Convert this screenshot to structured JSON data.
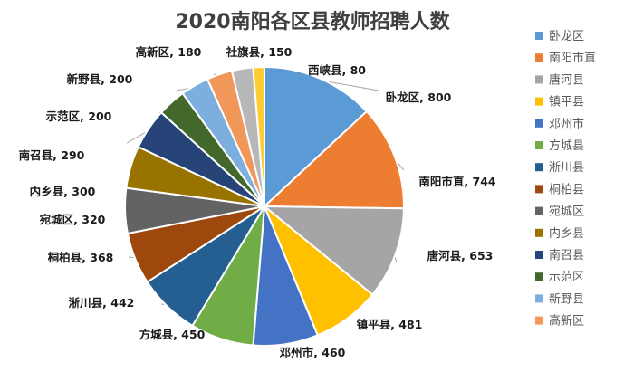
{
  "chart_data": {
    "type": "pie",
    "title": "2020南阳各区县教师招聘人数",
    "categories": [
      "卧龙区",
      "南阳市直",
      "唐河县",
      "镇平县",
      "邓州市",
      "方城县",
      "淅川县",
      "桐柏县",
      "宛城区",
      "内乡县",
      "南召县",
      "示范区",
      "新野县",
      "高新区",
      "社旗县",
      "西峡县"
    ],
    "values": [
      800,
      744,
      653,
      481,
      460,
      450,
      442,
      368,
      320,
      300,
      290,
      200,
      200,
      180,
      150,
      80
    ],
    "colors": [
      "#5B9BD5",
      "#ED7D31",
      "#A5A5A5",
      "#FFC000",
      "#4472C4",
      "#70AD47",
      "#255E91",
      "#9E480E",
      "#636363",
      "#997300",
      "#264478",
      "#43682B",
      "#7CAFDD",
      "#F1975A",
      "#B7B7B7",
      "#FFCD33"
    ],
    "legend": {
      "position": "right",
      "entries": [
        "卧龙区",
        "南阳市直",
        "唐河县",
        "镇平县",
        "邓州市",
        "方城县",
        "淅川县",
        "桐柏县",
        "宛城区",
        "内乡县",
        "南召县",
        "示范区",
        "新野县",
        "高新区"
      ]
    },
    "data_labels": [
      "卧龙区, 800",
      "南阳市直, 744",
      "唐河县, 653",
      "镇平县, 481",
      "邓州市, 460",
      "方城县, 450",
      "淅川县, 442",
      "桐柏县, 368",
      "宛城区, 320",
      "内乡县, 300",
      "南召县, 290",
      "示范区, 200",
      "新野县, 200",
      "高新区, 180",
      "社旗县, 150",
      "西峡县, 80"
    ]
  }
}
